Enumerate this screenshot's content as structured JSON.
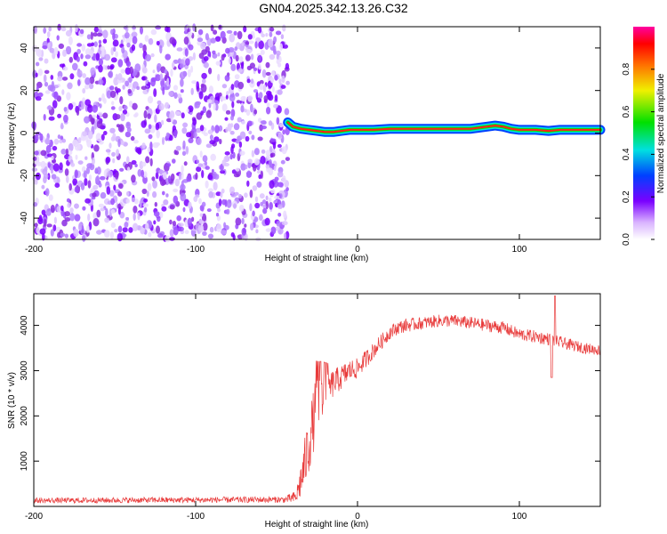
{
  "title": "GN04.2025.342.13.26.C32",
  "chart_data": [
    {
      "type": "heatmap",
      "name": "spectrogram",
      "xlabel": "Height of straight line (km)",
      "ylabel": "Frequency (Hz)",
      "xlim": [
        -200,
        150
      ],
      "ylim": [
        -50,
        50
      ],
      "xticks": [
        -200,
        -100,
        0,
        100
      ],
      "yticks": [
        -40,
        -20,
        0,
        20,
        40
      ],
      "noise_region_x": [
        -200,
        -43
      ],
      "signal_trace": {
        "x": [
          -43,
          -40,
          -35,
          -30,
          -25,
          -20,
          -15,
          -10,
          -5,
          0,
          10,
          20,
          30,
          40,
          50,
          60,
          70,
          80,
          85,
          90,
          95,
          100,
          110,
          118,
          125,
          150
        ],
        "y": [
          5,
          3,
          2,
          1.5,
          1,
          0.5,
          0.5,
          1,
          1.5,
          1.5,
          1.5,
          2,
          2,
          2,
          2,
          2,
          2,
          3,
          3.5,
          3,
          2,
          1.5,
          1.5,
          1,
          1.5,
          1.5
        ]
      },
      "colorbar": {
        "label": "Normalized spectral amplitude",
        "ticks": [
          "0.0",
          "0.2",
          "0.4",
          "0.6",
          "0.8"
        ],
        "range": [
          0,
          1
        ]
      }
    },
    {
      "type": "line",
      "name": "snr",
      "xlabel": "Height of straight line (km)",
      "ylabel": "SNR (10 * v/v)",
      "xlim": [
        -200,
        150
      ],
      "ylim": [
        0,
        4700
      ],
      "xticks": [
        -200,
        -100,
        0,
        100
      ],
      "yticks": [
        1000,
        2000,
        3000,
        4000
      ],
      "color": "#e83b3b",
      "series_envelope": {
        "x": [
          -200,
          -45,
          -38,
          -34,
          -30,
          -26,
          -22,
          -18,
          -14,
          -10,
          -5,
          0,
          5,
          10,
          15,
          20,
          25,
          30,
          40,
          50,
          60,
          70,
          80,
          90,
          100,
          110,
          118,
          122,
          128,
          140,
          150
        ],
        "y": [
          130,
          150,
          200,
          700,
          1400,
          2100,
          2400,
          2600,
          2750,
          2850,
          3000,
          3050,
          3250,
          3450,
          3650,
          3850,
          3950,
          4000,
          4050,
          4100,
          4100,
          4050,
          4000,
          3950,
          3800,
          3750,
          3700,
          3650,
          3600,
          3500,
          3450
        ],
        "noise": [
          60,
          70,
          150,
          500,
          700,
          700,
          500,
          350,
          300,
          280,
          250,
          220,
          200,
          180,
          170,
          160,
          150,
          150,
          140,
          140,
          140,
          140,
          140,
          140,
          140,
          140,
          140,
          140,
          130,
          120,
          120
        ]
      }
    }
  ]
}
